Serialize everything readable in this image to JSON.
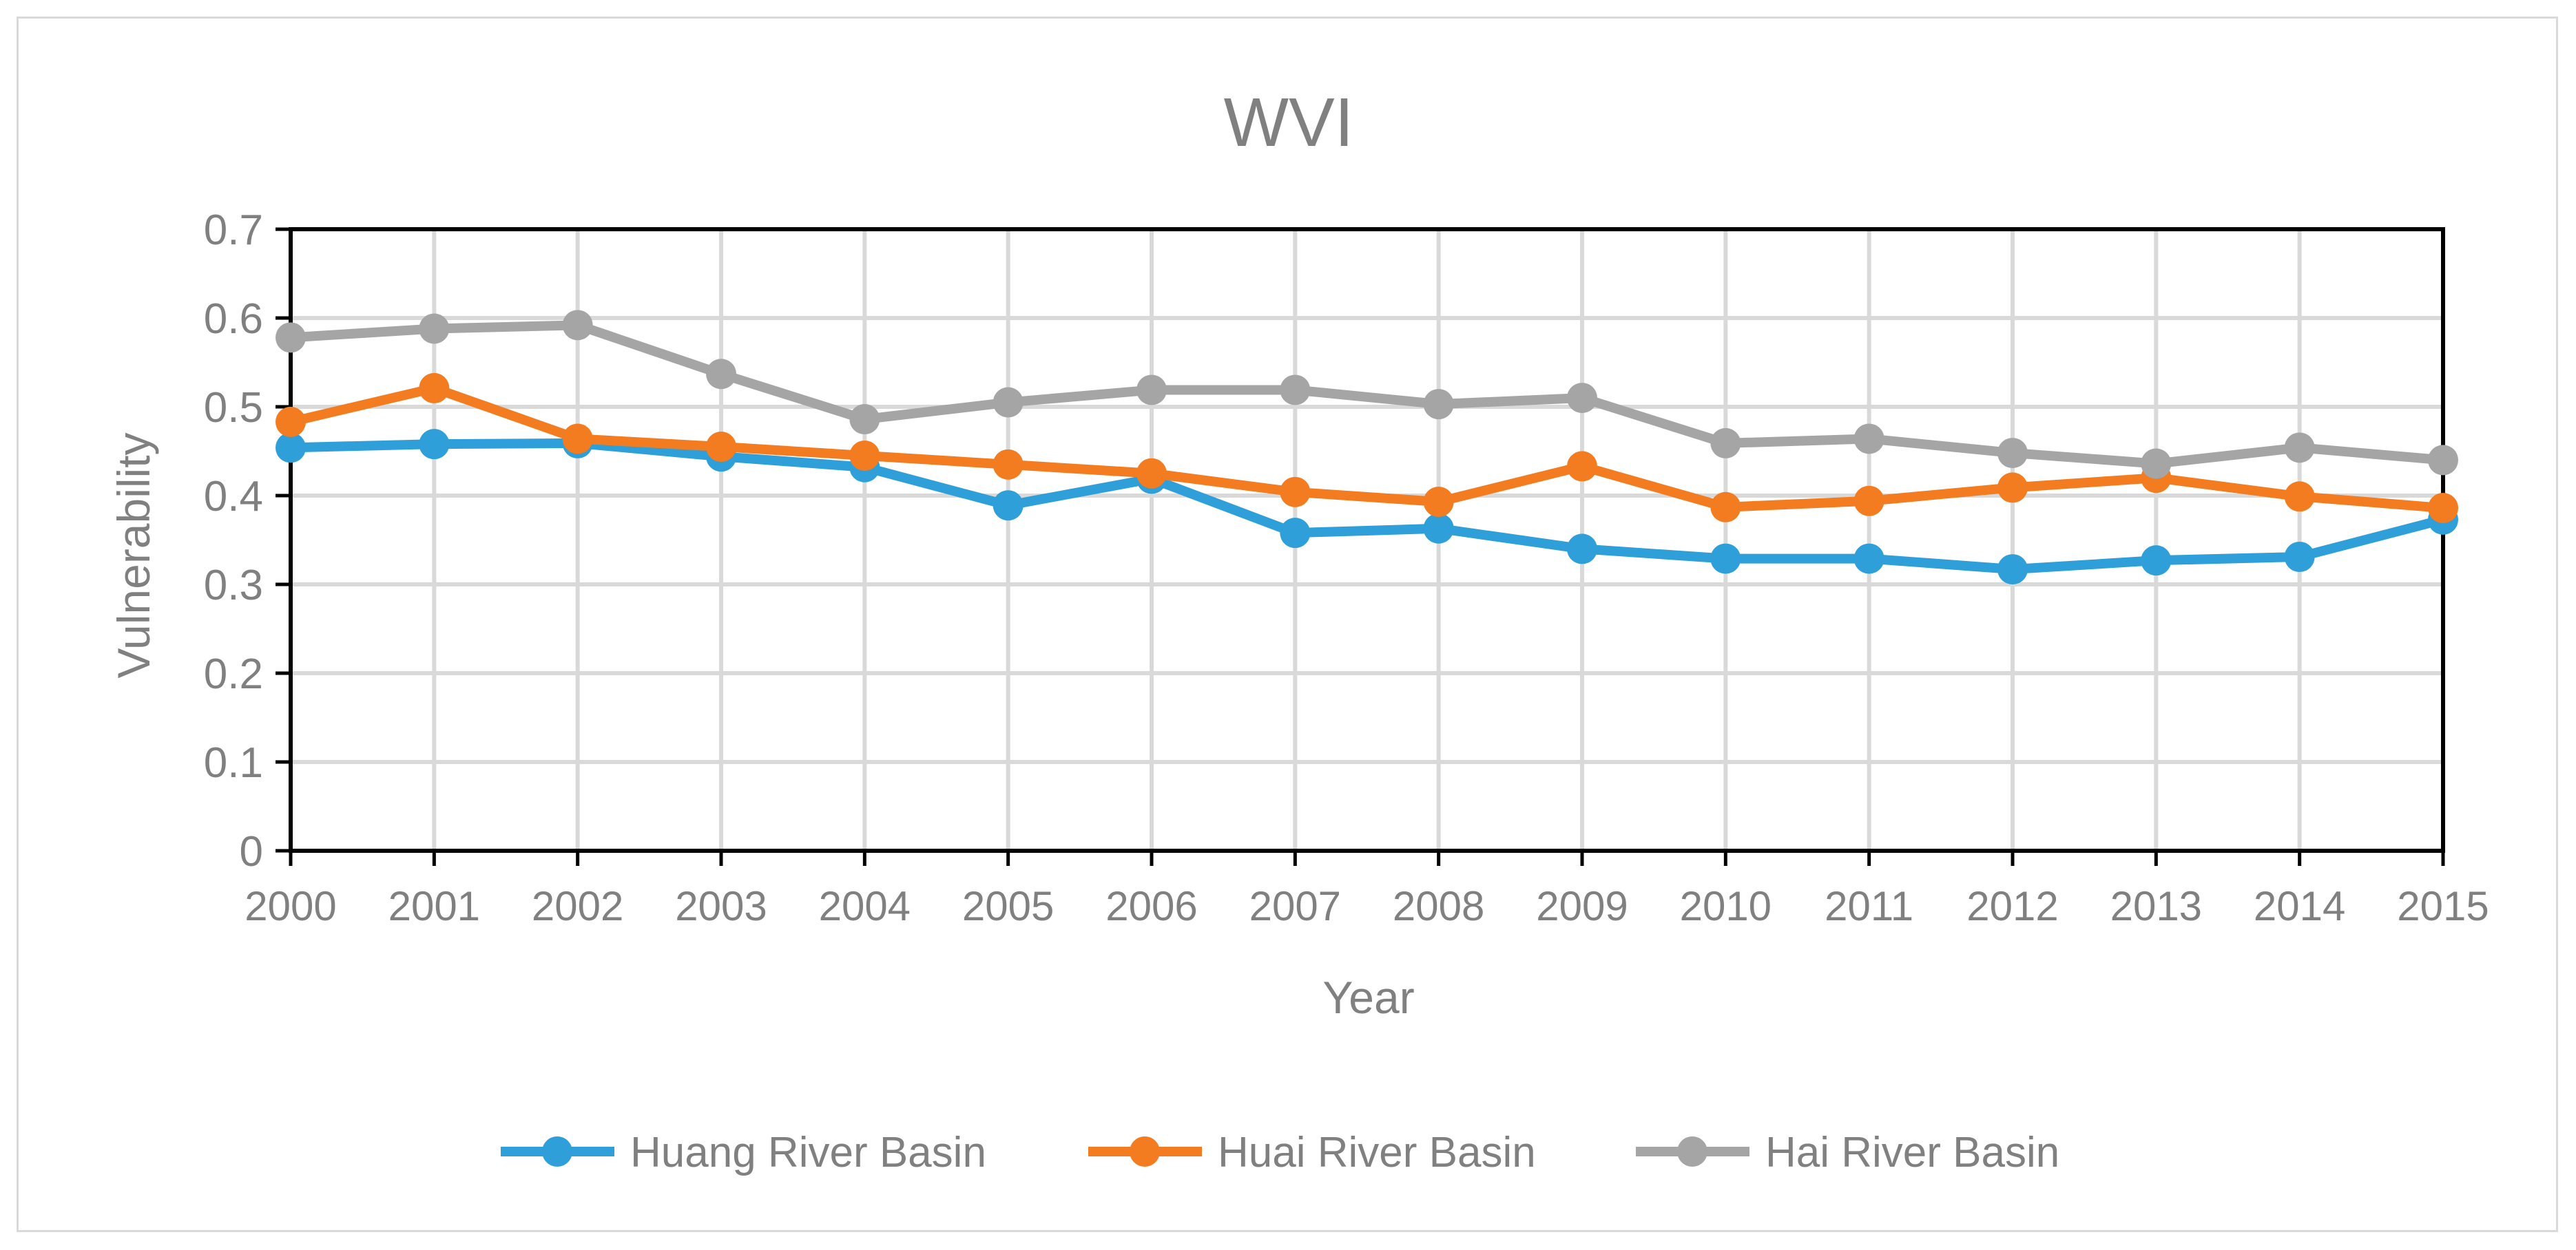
{
  "chart_data": {
    "type": "line",
    "title": "WVI",
    "xlabel": "Year",
    "ylabel": "Vulnerability",
    "ylim": [
      0,
      0.7
    ],
    "yticks": [
      "0",
      "0.1",
      "0.2",
      "0.3",
      "0.4",
      "0.5",
      "0.6",
      "0.7"
    ],
    "x": [
      "2000",
      "2001",
      "2002",
      "2003",
      "2004",
      "2005",
      "2006",
      "2007",
      "2008",
      "2009",
      "2010",
      "2011",
      "2012",
      "2013",
      "2014",
      "2015"
    ],
    "grid": true,
    "legend_position": "bottom",
    "series": [
      {
        "name": "Huang River Basin",
        "color": "#2e9fd8",
        "values": [
          0.454,
          0.458,
          0.459,
          0.444,
          0.432,
          0.389,
          0.419,
          0.358,
          0.363,
          0.34,
          0.329,
          0.329,
          0.317,
          0.327,
          0.331,
          0.373
        ]
      },
      {
        "name": "Huai River Basin",
        "color": "#f47c20",
        "values": [
          0.483,
          0.521,
          0.464,
          0.455,
          0.445,
          0.435,
          0.425,
          0.404,
          0.393,
          0.433,
          0.387,
          0.394,
          0.409,
          0.42,
          0.399,
          0.386
        ]
      },
      {
        "name": "Hai River Basin",
        "color": "#a5a5a5",
        "values": [
          0.578,
          0.588,
          0.592,
          0.537,
          0.486,
          0.505,
          0.519,
          0.519,
          0.503,
          0.51,
          0.459,
          0.464,
          0.448,
          0.436,
          0.454,
          0.44
        ]
      }
    ]
  }
}
